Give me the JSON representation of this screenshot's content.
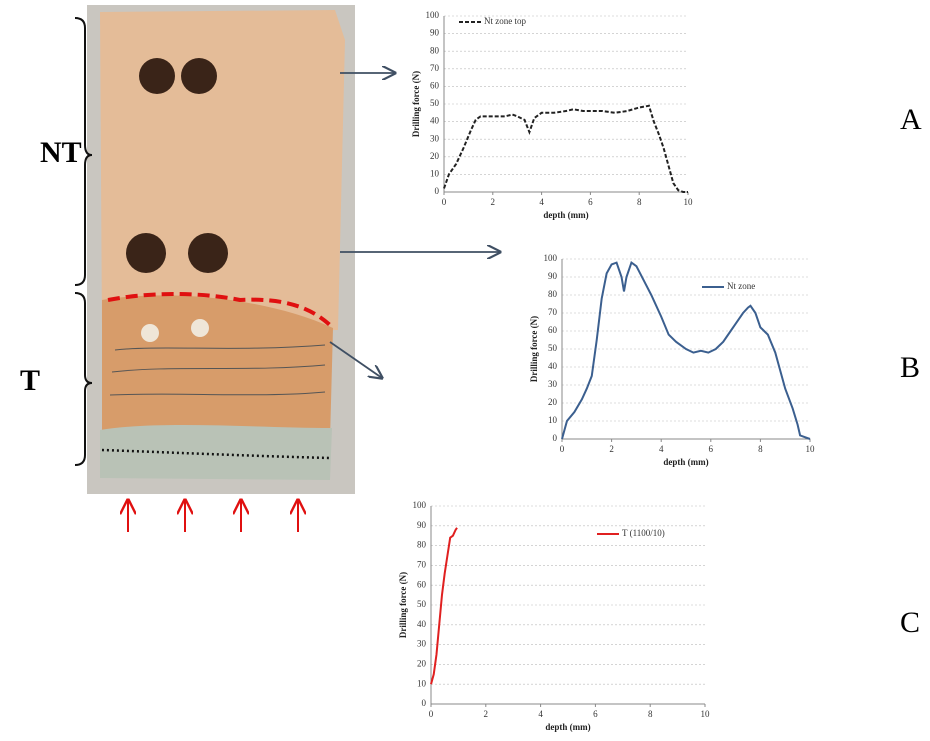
{
  "labels": {
    "nt": "NT",
    "t": "T",
    "a": "A",
    "b": "B",
    "c": "C"
  },
  "chart_data": [
    {
      "type": "line",
      "xlabel": "depth (mm)",
      "ylabel": "Drilling force (N)",
      "xlim": [
        0,
        10
      ],
      "ylim": [
        0,
        100
      ],
      "xticks": [
        0,
        2,
        4,
        6,
        8,
        10
      ],
      "yticks": [
        0,
        10,
        20,
        30,
        40,
        50,
        60,
        70,
        80,
        90,
        100
      ],
      "grid": true,
      "legend": "top-left",
      "series": [
        {
          "name": "Nt zone top",
          "color": "#222222",
          "line_style": "dashed",
          "x": [
            0,
            0.2,
            0.5,
            0.8,
            1.1,
            1.3,
            1.5,
            2,
            2.5,
            2.8,
            3,
            3.3,
            3.5,
            3.7,
            4,
            4.5,
            5,
            5.3,
            5.7,
            6,
            6.5,
            7,
            7.5,
            8,
            8.4,
            8.6,
            8.8,
            9,
            9.2,
            9.4,
            9.6,
            9.8,
            10
          ],
          "values": [
            2,
            10,
            16,
            25,
            35,
            41,
            43,
            43,
            43,
            44,
            43,
            41,
            34,
            42,
            45,
            45,
            46,
            47,
            46,
            46,
            46,
            45,
            46,
            48,
            49,
            40,
            33,
            25,
            15,
            5,
            1,
            0,
            0
          ]
        }
      ]
    },
    {
      "type": "line",
      "xlabel": "depth (mm)",
      "ylabel": "Drilling force (N)",
      "xlim": [
        0,
        10
      ],
      "ylim": [
        0,
        100
      ],
      "xticks": [
        0,
        2,
        4,
        6,
        8,
        10
      ],
      "yticks": [
        0,
        10,
        20,
        30,
        40,
        50,
        60,
        70,
        80,
        90,
        100
      ],
      "grid": true,
      "legend": "top-right",
      "series": [
        {
          "name": "Nt zone",
          "color": "#3b5f8f",
          "line_style": "solid",
          "x": [
            0,
            0.2,
            0.5,
            0.8,
            1,
            1.2,
            1.4,
            1.6,
            1.8,
            2,
            2.2,
            2.4,
            2.5,
            2.6,
            2.8,
            3,
            3.3,
            3.6,
            4,
            4.3,
            4.6,
            5,
            5.3,
            5.6,
            5.9,
            6.2,
            6.5,
            6.8,
            7,
            7.3,
            7.5,
            7.6,
            7.8,
            8,
            8.3,
            8.6,
            8.8,
            9,
            9.3,
            9.5,
            9.6,
            10
          ],
          "values": [
            0,
            10,
            15,
            22,
            28,
            35,
            55,
            78,
            92,
            97,
            98,
            90,
            82,
            90,
            98,
            96,
            88,
            80,
            68,
            58,
            54,
            50,
            48,
            49,
            48,
            50,
            54,
            60,
            64,
            70,
            73,
            74,
            70,
            62,
            58,
            48,
            38,
            28,
            17,
            8,
            2,
            0
          ]
        }
      ]
    },
    {
      "type": "line",
      "xlabel": "depth (mm)",
      "ylabel": "Drilling force (N)",
      "xlim": [
        0,
        10
      ],
      "ylim": [
        0,
        100
      ],
      "xticks": [
        0,
        2,
        4,
        6,
        8,
        10
      ],
      "yticks": [
        0,
        10,
        20,
        30,
        40,
        50,
        60,
        70,
        80,
        90,
        100
      ],
      "grid": true,
      "legend": "top-right",
      "series": [
        {
          "name": "T (1100/10)",
          "color": "#e02020",
          "line_style": "solid",
          "x": [
            0,
            0.1,
            0.2,
            0.3,
            0.4,
            0.5,
            0.6,
            0.7,
            0.8,
            0.9,
            0.95
          ],
          "values": [
            10,
            15,
            25,
            40,
            55,
            66,
            75,
            84,
            85,
            88,
            89
          ]
        }
      ]
    }
  ]
}
